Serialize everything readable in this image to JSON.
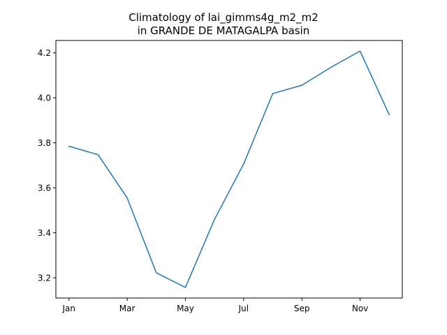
{
  "chart_data": {
    "type": "line",
    "title": "Climatology of lai_gimms4g_m2_m2\nin GRANDE DE MATAGALPA basin",
    "title_lines": [
      "Climatology of lai_gimms4g_m2_m2",
      "in GRANDE DE MATAGALPA basin"
    ],
    "xlabel": "",
    "ylabel": "",
    "x": [
      1,
      2,
      3,
      4,
      5,
      6,
      7,
      8,
      9,
      10,
      11,
      12
    ],
    "x_ticks": [
      1,
      3,
      5,
      7,
      9,
      11
    ],
    "x_tick_labels": [
      "Jan",
      "Mar",
      "May",
      "Jul",
      "Sep",
      "Nov"
    ],
    "y_ticks": [
      3.2,
      3.4,
      3.6,
      3.8,
      4.0,
      4.2
    ],
    "y_tick_labels": [
      "3.2",
      "3.4",
      "3.6",
      "3.8",
      "4.0",
      "4.2"
    ],
    "xlim": [
      0.55,
      12.45
    ],
    "ylim": [
      3.11,
      4.255
    ],
    "grid": false,
    "series": [
      {
        "color": "#1f77b4",
        "values": [
          3.785,
          3.747,
          3.555,
          3.222,
          3.157,
          3.46,
          3.706,
          4.019,
          4.056,
          4.136,
          4.208,
          3.925
        ]
      }
    ]
  }
}
